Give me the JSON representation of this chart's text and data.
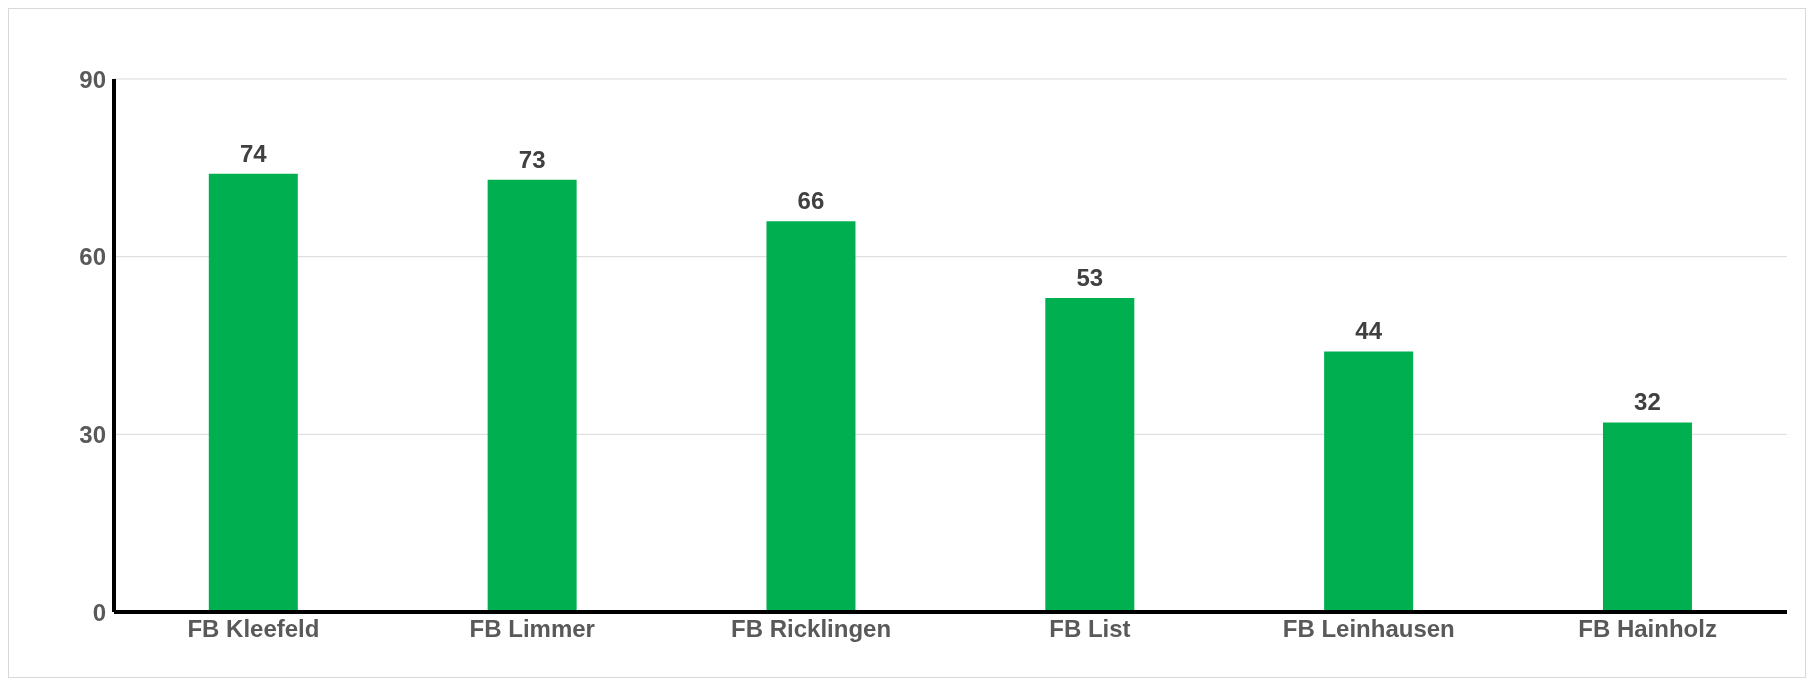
{
  "chart_data": {
    "type": "bar",
    "categories": [
      "FB Kleefeld",
      "FB Limmer",
      "FB Ricklingen",
      "FB List",
      "FB Leinhausen",
      "FB Hainholz"
    ],
    "values": [
      74,
      73,
      66,
      53,
      44,
      32
    ],
    "color": "#00b050",
    "ylim": [
      0,
      90
    ],
    "yticks": [
      0,
      30,
      60,
      90
    ],
    "grid": "y",
    "data_labels": true
  }
}
